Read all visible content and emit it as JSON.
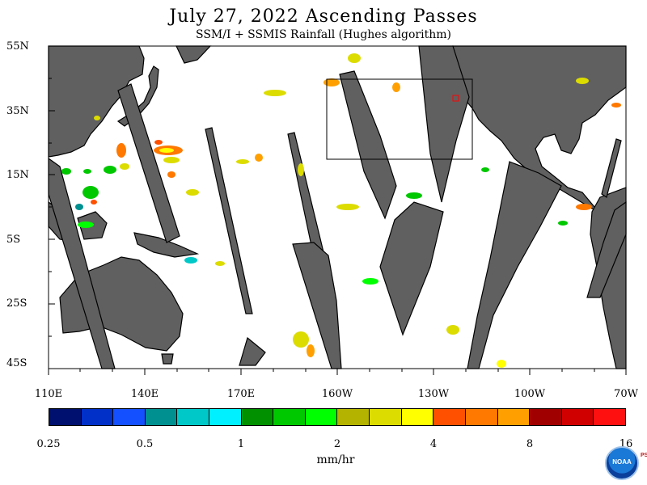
{
  "title": "July 27, 2022  Ascending Passes",
  "subtitle": "SSM/I + SSMIS Rainfall (Hughes algorithm)",
  "lat_labels": [
    "55N",
    "35N",
    "15N",
    "5S",
    "25S",
    "45S"
  ],
  "lon_labels": [
    "110E",
    "140E",
    "170E",
    "160W",
    "130W",
    "100W",
    "70W"
  ],
  "colorbar": {
    "colors": [
      "#00106e",
      "#0030c8",
      "#1450ff",
      "#009090",
      "#00c8c8",
      "#00f0ff",
      "#009000",
      "#00c800",
      "#00ff00",
      "#b4b400",
      "#dcdc00",
      "#ffff00",
      "#ff5000",
      "#ff7800",
      "#ffa000",
      "#a00000",
      "#d00000",
      "#ff1010"
    ],
    "tick_labels": [
      "0.25",
      "0.5",
      "1",
      "2",
      "4",
      "8",
      "16"
    ],
    "units": "mm/hr"
  },
  "logo_text": "NOAA",
  "logo_side_text": "PSL",
  "colors": {
    "land": "#606060",
    "ocean": "#ffffff",
    "no_data": "#606060"
  }
}
